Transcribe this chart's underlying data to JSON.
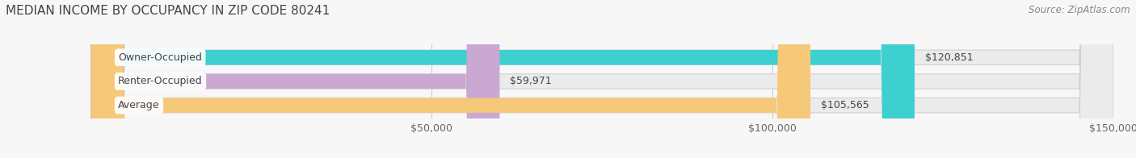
{
  "title": "MEDIAN INCOME BY OCCUPANCY IN ZIP CODE 80241",
  "source": "Source: ZipAtlas.com",
  "categories": [
    "Owner-Occupied",
    "Renter-Occupied",
    "Average"
  ],
  "values": [
    120851,
    59971,
    105565
  ],
  "bar_colors": [
    "#3ecfcf",
    "#c9a8d4",
    "#f5c87a"
  ],
  "bar_bg_color": "#ebebeb",
  "value_labels": [
    "$120,851",
    "$59,971",
    "$105,565"
  ],
  "xmax": 150000,
  "xticks": [
    50000,
    100000,
    150000
  ],
  "xtick_labels": [
    "$50,000",
    "$100,000",
    "$150,000"
  ],
  "figsize": [
    14.06,
    1.96
  ],
  "dpi": 100,
  "background_color": "#f7f7f7",
  "bar_height": 0.62,
  "title_fontsize": 11,
  "source_fontsize": 8.5,
  "label_fontsize": 9,
  "value_fontsize": 9,
  "tick_fontsize": 9
}
